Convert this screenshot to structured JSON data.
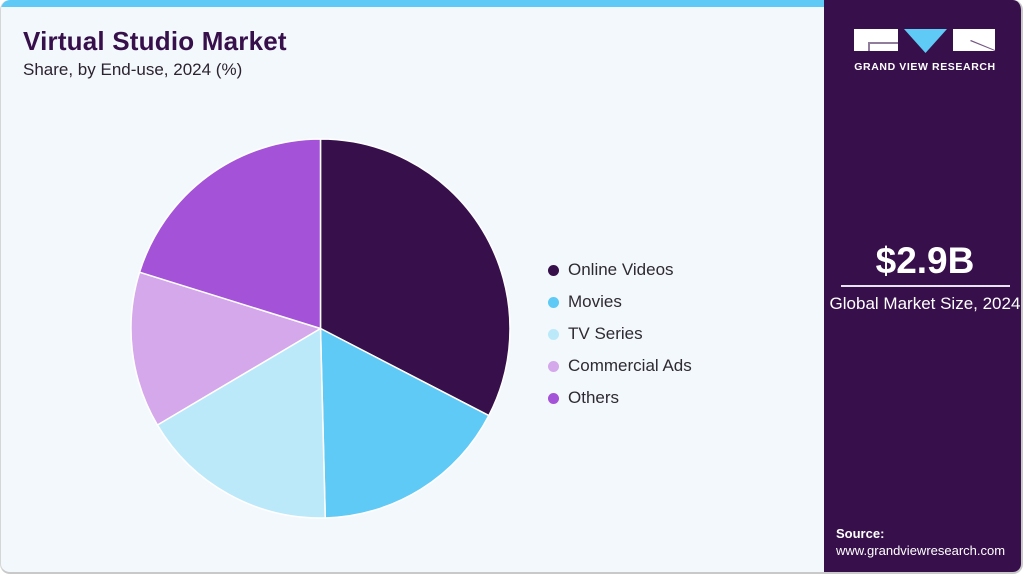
{
  "header": {
    "title": "Virtual Studio Market",
    "subtitle": "Share, by End-use, 2024 (%)"
  },
  "legend": {
    "items": [
      {
        "label": "Online Videos",
        "color": "#37104b"
      },
      {
        "label": "Movies",
        "color": "#5ecaf5"
      },
      {
        "label": "TV Series",
        "color": "#bce9f9"
      },
      {
        "label": "Commercial Ads",
        "color": "#d4a8eb"
      },
      {
        "label": "Others",
        "color": "#a452d8"
      }
    ]
  },
  "sidebar": {
    "brand": "GRAND VIEW RESEARCH",
    "market_size": "$2.9B",
    "market_caption": "Global Market Size, 2024",
    "source_label": "Source:",
    "source_url": "www.grandviewresearch.com"
  },
  "colors": {
    "accent_bar": "#5ecaf5",
    "sidebar_bg": "#37104b",
    "card_bg": "#f3f8fc"
  },
  "chart_data": {
    "type": "pie",
    "title": "Virtual Studio Market",
    "subtitle": "Share, by End-use, 2024 (%)",
    "categories": [
      "Online Videos",
      "Movies",
      "TV Series",
      "Commercial Ads",
      "Others"
    ],
    "values": [
      32.6,
      17.0,
      16.9,
      13.3,
      20.2
    ],
    "colors": [
      "#37104b",
      "#5ecaf5",
      "#bce9f9",
      "#d4a8eb",
      "#a452d8"
    ],
    "start_angle_deg": 0,
    "direction": "clockwise",
    "legend_position": "right",
    "annotations": [
      "$2.9B Global Market Size, 2024"
    ]
  }
}
